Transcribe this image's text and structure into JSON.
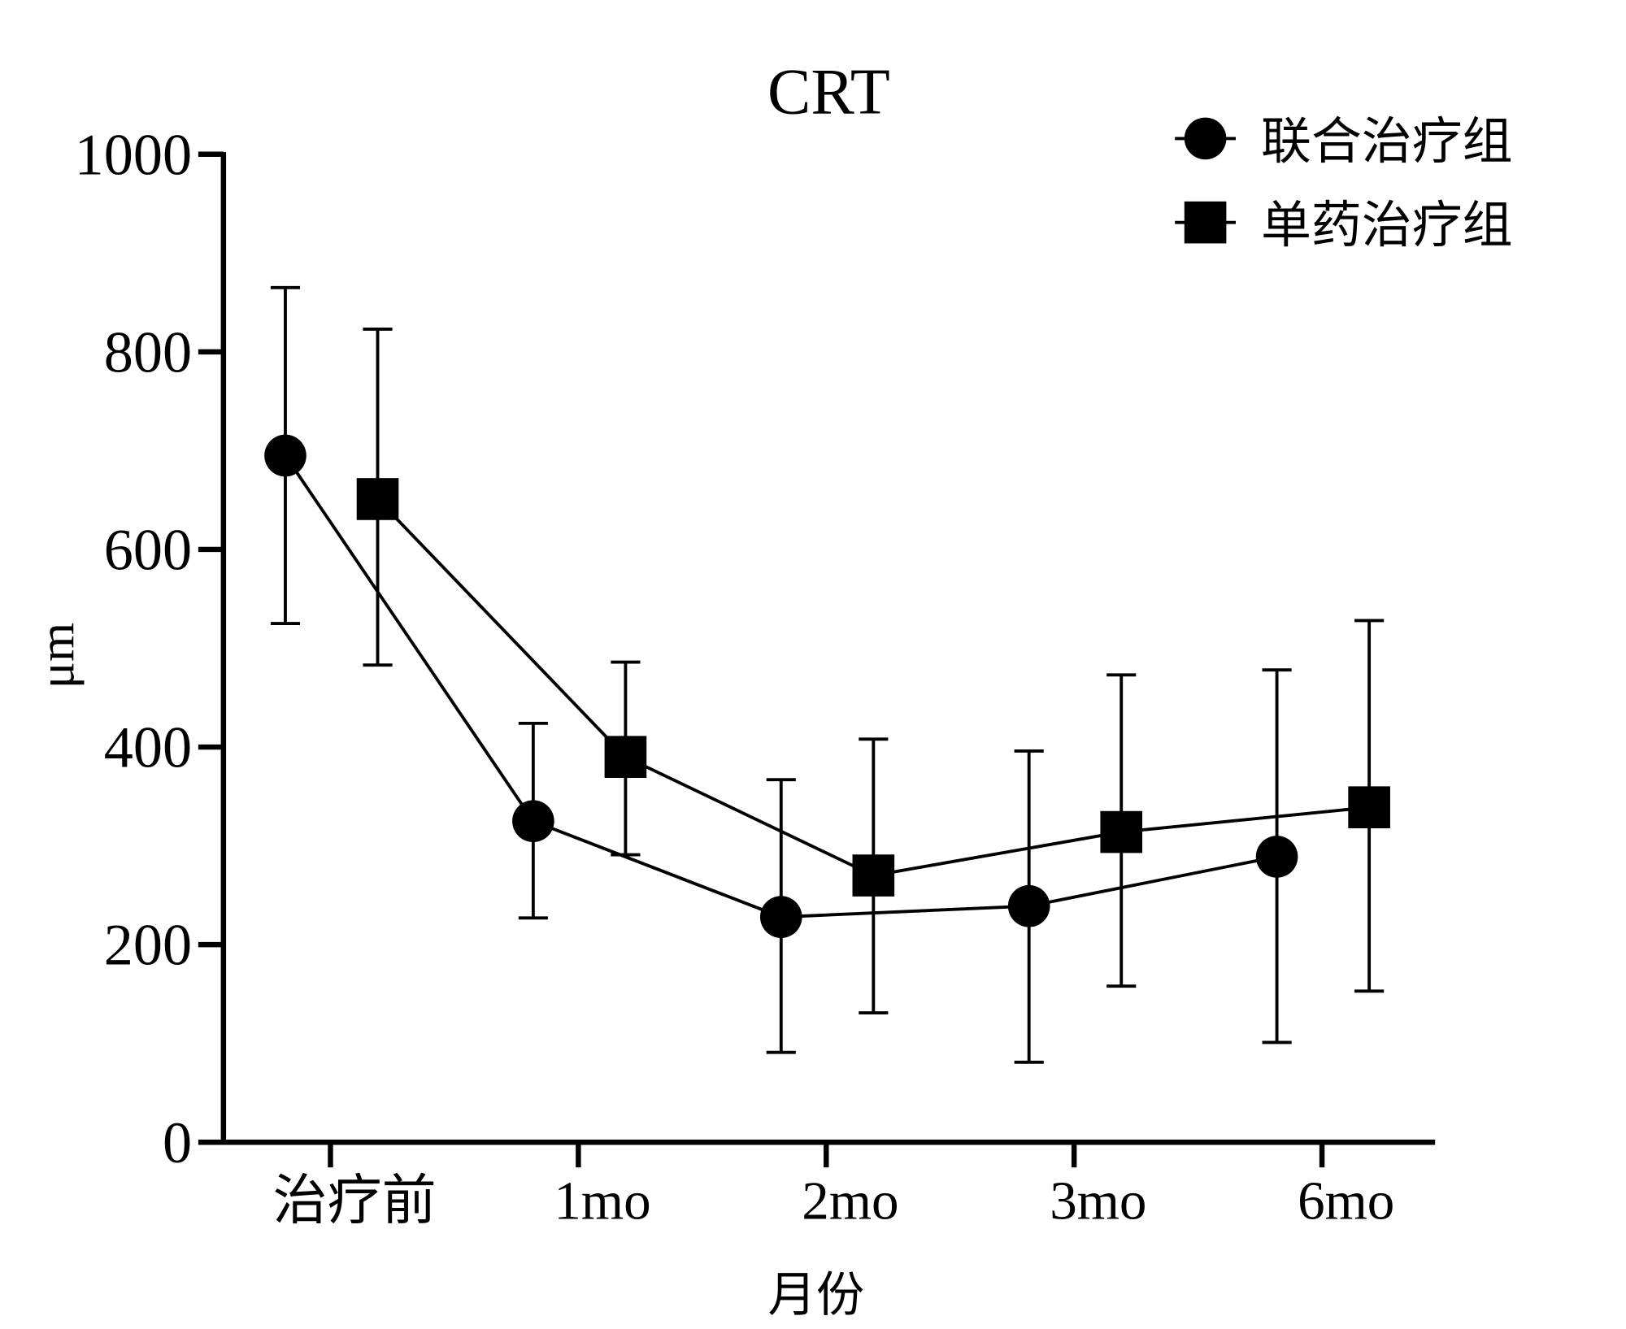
{
  "chart_data": {
    "type": "line",
    "title": "CRT",
    "xlabel": "月份",
    "ylabel": "μm",
    "categories": [
      "治疗前",
      "1mo",
      "2mo",
      "3mo",
      "6mo"
    ],
    "ylim": [
      0,
      1000
    ],
    "yticks": [
      0,
      200,
      400,
      600,
      800,
      1000
    ],
    "legend_position": "top-right",
    "error_bars": true,
    "series": [
      {
        "name": "联合治疗组",
        "marker": "circle",
        "values": [
          695,
          325,
          228,
          239,
          289
        ],
        "error_upper": [
          865,
          424,
          367,
          396,
          478
        ],
        "error_lower": [
          525,
          227,
          91,
          81,
          101
        ]
      },
      {
        "name": "单药治疗组",
        "marker": "square",
        "values": [
          651,
          390,
          270,
          314,
          339
        ],
        "error_upper": [
          823,
          486,
          408,
          473,
          528
        ],
        "error_lower": [
          483,
          291,
          131,
          158,
          153
        ]
      }
    ]
  }
}
